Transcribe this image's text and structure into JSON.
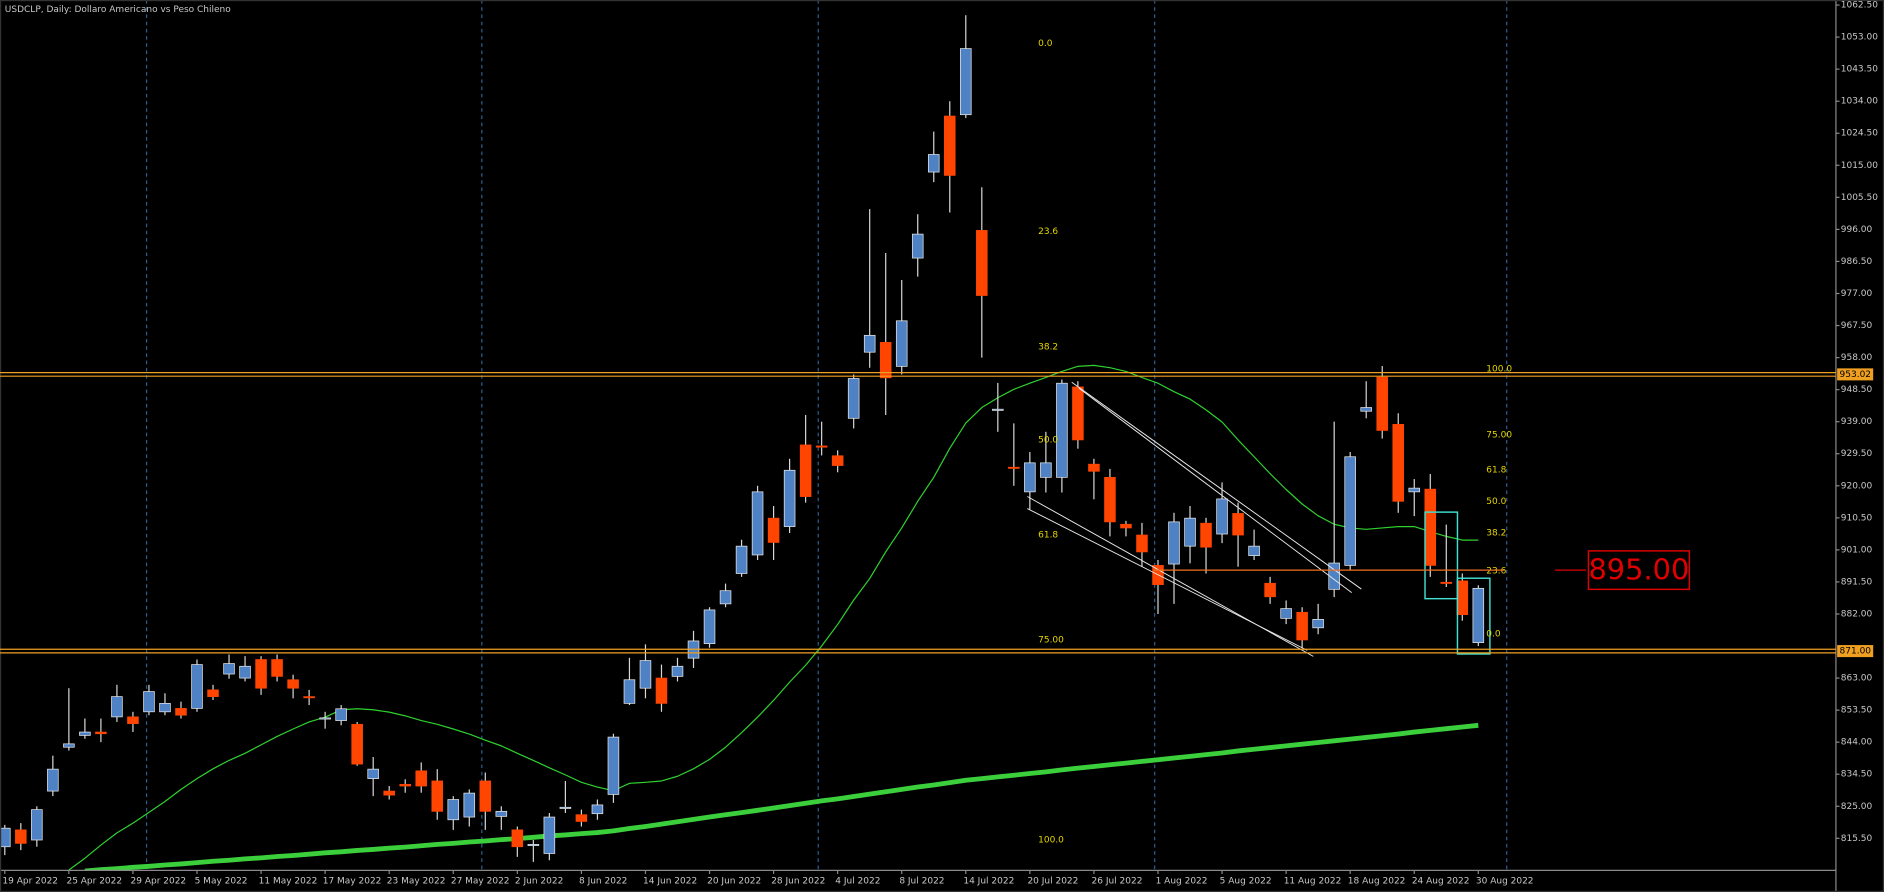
{
  "chart_data": {
    "type": "candlestick",
    "title": "USDCLP, Daily:  Dollaro Americano vs Peso Chileno",
    "categories": [
      "19 Apr 2022",
      null,
      null,
      null,
      "25 Apr 2022",
      null,
      null,
      null,
      "29 Apr 2022",
      null,
      null,
      null,
      "5 May 2022",
      null,
      null,
      null,
      "11 May 2022",
      null,
      null,
      null,
      "17 May 2022",
      null,
      null,
      null,
      "23 May 2022",
      null,
      null,
      null,
      "27 May 2022",
      null,
      null,
      null,
      "2 Jun 2022",
      null,
      null,
      null,
      "8 Jun 2022",
      null,
      null,
      null,
      "14 Jun 2022",
      null,
      null,
      null,
      "20 Jun 2022",
      null,
      null,
      null,
      "28 Jun 2022",
      null,
      null,
      null,
      "4 Jul 2022",
      null,
      null,
      null,
      "8 Jul 2022",
      null,
      null,
      null,
      "14 Jul 2022",
      null,
      null,
      null,
      "20 Jul 2022",
      null,
      null,
      null,
      "26 Jul 2022",
      null,
      null,
      null,
      "1 Aug 2022",
      null,
      null,
      null,
      "5 Aug 2022",
      null,
      null,
      null,
      "11 Aug 2022",
      null,
      null,
      null,
      "18 Aug 2022",
      null,
      null,
      null,
      "24 Aug 2022",
      null,
      null,
      null,
      "30 Aug 2022"
    ],
    "open": [
      813,
      818,
      815,
      829.5,
      842.5,
      846,
      847,
      851.5,
      851.5,
      853,
      853,
      854,
      854,
      859.5,
      864.2,
      863,
      868.5,
      868.5,
      862.5,
      857.5,
      851,
      850.4,
      849.3,
      833.2,
      829.5,
      831.5,
      835.5,
      832.5,
      821,
      821.8,
      832.5,
      822,
      818,
      813.5,
      811,
      824.5,
      822.5,
      822.8,
      828.5,
      855.5,
      860,
      863,
      863.5,
      868.9,
      873.2,
      885,
      894,
      899.5,
      910.4,
      907.9,
      932.1,
      931.8,
      928.9,
      940,
      959.6,
      962.5,
      955.4,
      987.5,
      1013,
      1029.6,
      1030,
      995.7,
      942.5,
      925.5,
      918.2,
      922.5,
      922.5,
      949.3,
      926.4,
      922.5,
      908.6,
      905.4,
      896.4,
      896.8,
      902.1,
      908.9,
      905.7,
      911.8,
      899.3,
      891.1,
      880.7,
      882.5,
      877.9,
      889.3,
      896.4,
      942.1,
      952.2,
      938.2,
      918.2,
      919,
      891.4,
      891.8,
      873.5
    ],
    "high": [
      819.5,
      820,
      825,
      840,
      860,
      851,
      851,
      861,
      853,
      861,
      858.5,
      856,
      868.5,
      861,
      870,
      869.5,
      869.5,
      870,
      864,
      859.5,
      853,
      855,
      850,
      839.6,
      831,
      833,
      838,
      836,
      828,
      830,
      835,
      825,
      819,
      815,
      823,
      832.5,
      824,
      827,
      846.5,
      869,
      873,
      867,
      869,
      877,
      884,
      891,
      904,
      920,
      914,
      928,
      941,
      939,
      930.5,
      953,
      1002,
      989,
      981,
      1000.5,
      1025,
      1034,
      1059.5,
      1008.5,
      950.5,
      938.5,
      930,
      936,
      951.5,
      951,
      928,
      925,
      909.6,
      909,
      898,
      912,
      914,
      910.5,
      921,
      915,
      907,
      893,
      886,
      884,
      885,
      939,
      930,
      951,
      955.5,
      941.5,
      922,
      923.5,
      908.5,
      894,
      890.5
    ],
    "low": [
      810.5,
      812,
      813,
      828,
      841.5,
      845,
      844,
      850,
      847,
      852,
      852,
      851,
      853,
      856.5,
      862.8,
      862,
      858,
      862,
      857,
      855,
      848,
      849,
      837,
      828,
      827,
      829,
      829,
      821,
      818,
      819,
      818,
      818,
      810,
      808.5,
      809,
      823,
      819,
      821,
      826,
      855,
      857,
      853,
      862,
      866,
      872,
      884,
      893,
      898,
      898,
      906,
      915,
      929,
      924,
      937,
      955,
      941,
      953,
      982,
      1010,
      1001,
      1029,
      958,
      936,
      920,
      913,
      918,
      918,
      931,
      916,
      905,
      905,
      896,
      882,
      885,
      897,
      894,
      903,
      896,
      898,
      885,
      879,
      872,
      876,
      887,
      895,
      940,
      934,
      912,
      911,
      893,
      890,
      880,
      872.5
    ],
    "close": [
      818.5,
      814,
      824,
      836,
      843.5,
      847,
      846.5,
      857.5,
      849.5,
      859,
      855.5,
      852,
      867,
      857.5,
      867.3,
      866.5,
      860,
      863.5,
      860,
      857.3,
      851.2,
      853.9,
      837.5,
      836,
      828.3,
      831,
      831,
      823.5,
      827,
      828.9,
      823.5,
      823.5,
      813,
      813.7,
      821.8,
      824.7,
      820.5,
      825.4,
      845.5,
      862.5,
      868.2,
      855.5,
      866.5,
      874,
      883.2,
      888.9,
      902.1,
      918.2,
      903.2,
      924.6,
      916.8,
      931.5,
      926,
      951.8,
      964.6,
      952,
      968.9,
      994.6,
      1018.2,
      1012,
      1049.6,
      976.4,
      942.7,
      925.3,
      926.8,
      926.8,
      950.4,
      933.6,
      924.3,
      909.3,
      907.5,
      900.4,
      890.7,
      909.3,
      910.4,
      901.8,
      916.1,
      905.4,
      902.1,
      887.1,
      883.6,
      874.3,
      880.4,
      897.1,
      928.6,
      943.2,
      936.4,
      915.4,
      919.3,
      896.4,
      891.2,
      881.8,
      889.6
    ],
    "up_color": "#4f82c4",
    "down_color": "#ff4500",
    "wick_color": "#d8d8d8",
    "moving_averages": [
      {
        "color": "#2fd12f",
        "width": 1,
        "values": [
          null,
          null,
          null,
          null,
          806.1,
          809.6,
          813.5,
          817.1,
          820,
          823.2,
          826.4,
          830,
          833.2,
          836.1,
          838.6,
          840.7,
          843.2,
          845.7,
          847.9,
          850,
          851.4,
          853.6,
          853.9,
          853.6,
          852.9,
          851.8,
          850.4,
          849.3,
          847.9,
          846.4,
          844.6,
          842.9,
          840.7,
          838.6,
          836.4,
          834.3,
          832.1,
          830.7,
          829.6,
          831.8,
          832.1,
          832.5,
          833.9,
          836.1,
          838.9,
          842.5,
          846.8,
          851.4,
          856.4,
          861.8,
          866.8,
          872.5,
          878.9,
          886.1,
          892.5,
          900.4,
          907.5,
          915.4,
          922.5,
          931.1,
          938.6,
          943.2,
          946.1,
          948.6,
          950.4,
          952.1,
          953.9,
          955.4,
          955.7,
          955,
          953.9,
          952.1,
          950.4,
          947.9,
          945.7,
          942.5,
          938.9,
          933.6,
          928.6,
          923.6,
          918.9,
          914.6,
          911.1,
          908.6,
          907.5,
          907.1,
          907.5,
          907.9,
          907.9,
          906.4,
          905,
          903.9,
          903.9
        ]
      },
      {
        "color": "#3ccf3c",
        "width": 4,
        "values": [
          null,
          null,
          null,
          null,
          null,
          805.8,
          806.2,
          806.5,
          806.9,
          807.2,
          807.6,
          807.9,
          808.3,
          808.7,
          809,
          809.4,
          809.7,
          810.1,
          810.4,
          810.8,
          811.2,
          811.5,
          811.9,
          812.2,
          812.6,
          812.9,
          813.3,
          813.7,
          814,
          814.4,
          814.7,
          815.1,
          815.4,
          815.8,
          816.2,
          816.5,
          816.9,
          817.2,
          817.7,
          818.4,
          819,
          819.7,
          820.4,
          821.1,
          821.8,
          822.5,
          823.1,
          823.8,
          824.5,
          825.2,
          825.9,
          826.6,
          827.2,
          827.9,
          828.6,
          829.3,
          830,
          830.7,
          831.3,
          832,
          832.7,
          833.2,
          833.7,
          834.2,
          834.7,
          835.2,
          835.8,
          836.3,
          836.8,
          837.3,
          837.8,
          838.3,
          838.8,
          839.3,
          839.8,
          840.3,
          840.8,
          841.4,
          841.9,
          842.4,
          842.9,
          843.4,
          843.9,
          844.4,
          844.9,
          845.4,
          845.9,
          846.4,
          847,
          847.5,
          848,
          848.5,
          849
        ]
      }
    ],
    "ylim": [
      806,
      1064
    ],
    "yticks": [
      {
        "value": 815.5,
        "label": "815.50"
      },
      {
        "value": 825,
        "label": "825.00"
      },
      {
        "value": 834.5,
        "label": "834.50"
      },
      {
        "value": 844,
        "label": "844.00"
      },
      {
        "value": 853.5,
        "label": "853.50"
      },
      {
        "value": 863,
        "label": "863.00"
      },
      {
        "value": 882,
        "label": "882.00"
      },
      {
        "value": 891.5,
        "label": "891.50"
      },
      {
        "value": 901,
        "label": "901.00"
      },
      {
        "value": 910.5,
        "label": "910.50"
      },
      {
        "value": 920,
        "label": "920.00"
      },
      {
        "value": 929.5,
        "label": "929.50"
      },
      {
        "value": 939,
        "label": "939.00"
      },
      {
        "value": 948.5,
        "label": "948.50"
      },
      {
        "value": 958,
        "label": "958.00"
      },
      {
        "value": 967.5,
        "label": "967.50"
      },
      {
        "value": 977,
        "label": "977.00"
      },
      {
        "value": 986.5,
        "label": "986.50"
      },
      {
        "value": 996,
        "label": "996.00"
      },
      {
        "value": 1005.5,
        "label": "1005.50"
      },
      {
        "value": 1015,
        "label": "1015.00"
      },
      {
        "value": 1024.5,
        "label": "1024.50"
      },
      {
        "value": 1034,
        "label": "1034.00"
      },
      {
        "value": 1043.5,
        "label": "1043.50"
      },
      {
        "value": 1053,
        "label": "1053.00"
      },
      {
        "value": 1062.5,
        "label": "1062.50"
      }
    ],
    "horizontal_lines": [
      {
        "value": 953.02,
        "label": "953.02",
        "color": "#f0a020"
      },
      {
        "value": 871,
        "label": "871.00",
        "color": "#f0a020"
      }
    ],
    "level": {
      "value": 895,
      "label": "895.00",
      "color": "#e00000"
    },
    "fibonacci": [
      {
        "levels": [
          {
            "value": 1050,
            "label": "0.0"
          },
          {
            "value": 994.3,
            "label": "23.6"
          },
          {
            "value": 960,
            "label": "38.2"
          },
          {
            "value": 932.5,
            "label": "50.0"
          },
          {
            "value": 904.3,
            "label": "61.8"
          },
          {
            "value": 873.2,
            "label": "75.00"
          },
          {
            "value": 813.9,
            "label": "100.0"
          }
        ]
      },
      {
        "levels": [
          {
            "value": 953.6,
            "label": "100.0"
          },
          {
            "value": 934,
            "label": "75.00"
          },
          {
            "value": 923.6,
            "label": "61.8"
          },
          {
            "value": 914.3,
            "label": "50.0"
          },
          {
            "value": 905,
            "label": "38.2"
          },
          {
            "value": 893.6,
            "label": "23.6"
          },
          {
            "value": 875,
            "label": "0.0"
          }
        ]
      }
    ]
  }
}
